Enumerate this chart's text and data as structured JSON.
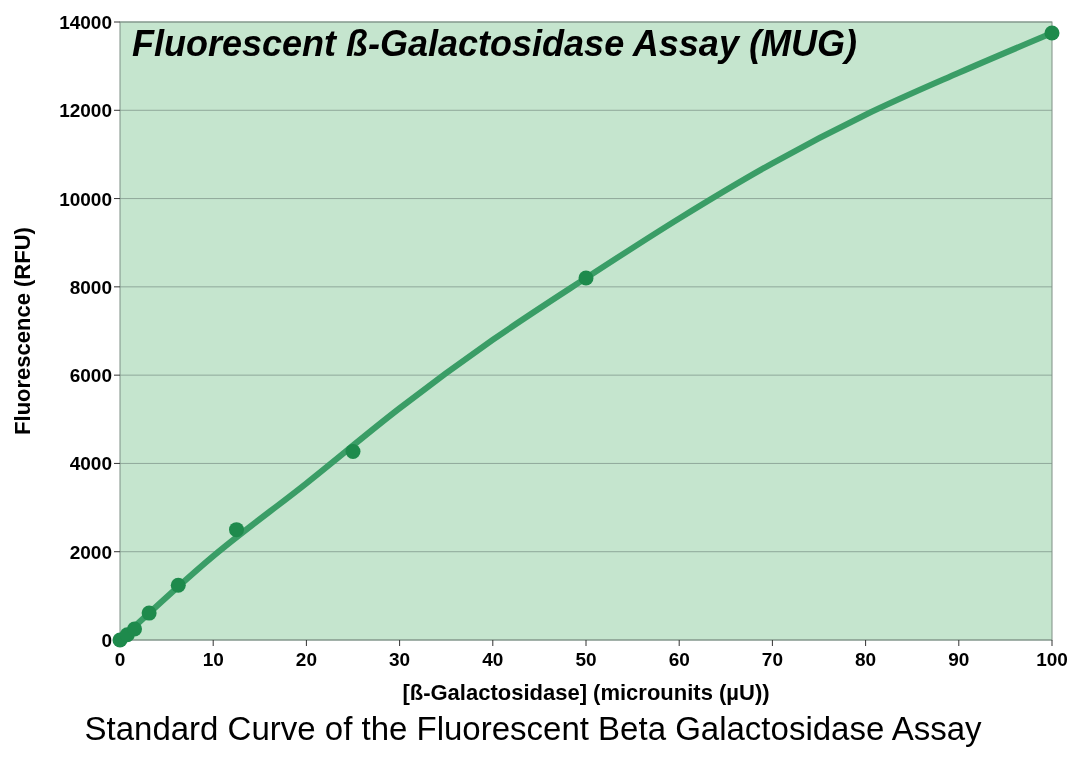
{
  "chart_data": {
    "type": "scatter",
    "title": "Fluorescent ß-Galactosidase Assay (MUG)",
    "xlabel": "[ß-Galactosidase] (microunits (µU))",
    "ylabel": "Fluorescence (RFU)",
    "annotations": [
      "Standard Curve of the Fluorescent Beta Galactosidase Assay"
    ],
    "xlim": [
      0,
      100
    ],
    "xticks": [
      0,
      10,
      20,
      30,
      40,
      50,
      60,
      70,
      80,
      90,
      100
    ],
    "ylim": [
      0,
      14000
    ],
    "yticks": [
      0,
      2000,
      4000,
      6000,
      8000,
      10000,
      12000,
      14000
    ],
    "grid": "y",
    "series": [
      {
        "type": "line",
        "color": "#3a9d66",
        "marker": "none",
        "x": [
          0,
          10,
          20,
          30,
          40,
          50,
          60,
          70,
          80,
          90,
          100
        ],
        "values": [
          0,
          1900,
          3550,
          5250,
          6800,
          8200,
          9550,
          10800,
          11900,
          12850,
          13750
        ]
      },
      {
        "color": "#1e8a4c",
        "marker": "circle",
        "x": [
          0,
          0.78,
          1.56,
          3.125,
          6.25,
          12.5,
          25,
          50,
          100
        ],
        "values": [
          0,
          120,
          250,
          610,
          1240,
          2500,
          4270,
          8200,
          13750
        ]
      }
    ]
  }
}
